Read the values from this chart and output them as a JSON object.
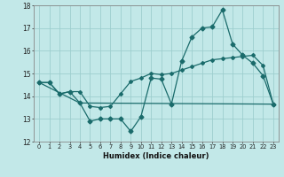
{
  "xlabel": "Humidex (Indice chaleur)",
  "bg_color": "#c2e8e8",
  "grid_color": "#9ecece",
  "line_color": "#1a6b6b",
  "xlim": [
    -0.5,
    23.5
  ],
  "ylim": [
    12,
    18
  ],
  "yticks": [
    12,
    13,
    14,
    15,
    16,
    17,
    18
  ],
  "xticks": [
    0,
    1,
    2,
    3,
    4,
    5,
    6,
    7,
    8,
    9,
    10,
    11,
    12,
    13,
    14,
    15,
    16,
    17,
    18,
    19,
    20,
    21,
    22,
    23
  ],
  "series1_x": [
    0,
    1,
    2,
    3,
    4,
    5,
    6,
    7,
    8,
    9,
    10,
    11,
    12,
    13,
    14,
    15,
    16,
    17,
    18,
    19,
    20,
    21,
    22,
    23
  ],
  "series1_y": [
    14.6,
    14.6,
    14.1,
    14.2,
    13.7,
    12.9,
    13.0,
    13.0,
    13.0,
    12.45,
    13.1,
    14.8,
    14.75,
    13.65,
    15.55,
    16.6,
    17.0,
    17.05,
    17.8,
    16.3,
    15.8,
    15.45,
    14.9,
    13.65
  ],
  "series2_x": [
    0,
    1,
    2,
    3,
    4,
    5,
    6,
    7,
    8,
    9,
    10,
    11,
    12,
    13,
    14,
    15,
    16,
    17,
    18,
    19,
    20,
    21,
    22,
    23
  ],
  "series2_y": [
    14.6,
    14.6,
    14.1,
    14.2,
    14.2,
    13.55,
    13.5,
    13.55,
    14.1,
    14.65,
    14.8,
    15.0,
    14.95,
    15.0,
    15.15,
    15.3,
    15.45,
    15.6,
    15.65,
    15.7,
    15.75,
    15.8,
    15.35,
    13.65
  ],
  "series3_x": [
    0,
    4,
    23
  ],
  "series3_y": [
    14.6,
    13.7,
    13.65
  ]
}
